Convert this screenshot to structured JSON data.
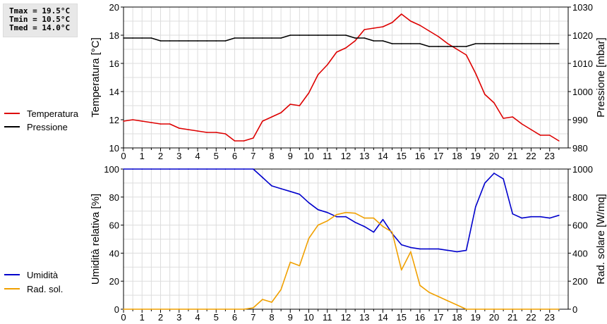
{
  "stats": {
    "tmax": "Tmax = 19.5°C",
    "tmin": "Tmin = 10.5°C",
    "tmed": "Tmed = 14.0°C"
  },
  "chart_data": [
    {
      "type": "line",
      "x_ticks": [
        "0",
        "1",
        "2",
        "3",
        "4",
        "5",
        "6",
        "7",
        "8",
        "9",
        "10",
        "11",
        "12",
        "13",
        "14",
        "15",
        "16",
        "17",
        "18",
        "19",
        "20",
        "21",
        "22",
        "23"
      ],
      "xlim": [
        0,
        24
      ],
      "ylabel": "Temperatura [°C]",
      "ylim": [
        10,
        20
      ],
      "y_ticks": [
        "10",
        "12",
        "14",
        "16",
        "18",
        "20"
      ],
      "ylabel_right": "Pressione [mbar]",
      "ylim_right": [
        980,
        1030
      ],
      "y_ticks_right": [
        "980",
        "990",
        "1000",
        "1010",
        "1020",
        "1030"
      ],
      "grid": true,
      "series": [
        {
          "name": "Temperatura",
          "axis": "left",
          "color": "#dd0000",
          "x": [
            0,
            0.5,
            1,
            1.5,
            2,
            2.5,
            3,
            3.5,
            4,
            4.5,
            5,
            5.5,
            6,
            6.5,
            7,
            7.5,
            8,
            8.5,
            9,
            9.5,
            10,
            10.5,
            11,
            11.5,
            12,
            12.5,
            13,
            13.5,
            14,
            14.5,
            15,
            15.5,
            16,
            16.5,
            17,
            17.5,
            18,
            18.5,
            19,
            19.5,
            20,
            20.5,
            21,
            21.5,
            22,
            22.5,
            23,
            23.5
          ],
          "values": [
            11.9,
            12.0,
            11.9,
            11.8,
            11.7,
            11.7,
            11.4,
            11.3,
            11.2,
            11.1,
            11.1,
            11.0,
            10.5,
            10.5,
            10.7,
            11.9,
            12.2,
            12.5,
            13.1,
            13.0,
            13.9,
            15.2,
            15.9,
            16.8,
            17.1,
            17.6,
            18.4,
            18.5,
            18.6,
            18.9,
            19.5,
            19.0,
            18.7,
            18.3,
            17.9,
            17.4,
            17.0,
            16.6,
            15.3,
            13.8,
            13.2,
            12.1,
            12.2,
            11.7,
            11.3,
            10.9,
            10.9,
            10.5
          ]
        },
        {
          "name": "Pressione",
          "axis": "right",
          "color": "#000000",
          "x": [
            0,
            0.5,
            1,
            1.5,
            2,
            2.5,
            3,
            3.5,
            4,
            4.5,
            5,
            5.5,
            6,
            6.5,
            7,
            7.5,
            8,
            8.5,
            9,
            9.5,
            10,
            10.5,
            11,
            11.5,
            12,
            12.5,
            13,
            13.5,
            14,
            14.5,
            15,
            15.5,
            16,
            16.5,
            17,
            17.5,
            18,
            18.5,
            19,
            19.5,
            20,
            20.5,
            21,
            21.5,
            22,
            22.5,
            23,
            23.5
          ],
          "values": [
            1019,
            1019,
            1019,
            1019,
            1018,
            1018,
            1018,
            1018,
            1018,
            1018,
            1018,
            1018,
            1019,
            1019,
            1019,
            1019,
            1019,
            1019,
            1020,
            1020,
            1020,
            1020,
            1020,
            1020,
            1020,
            1019,
            1019,
            1018,
            1018,
            1017,
            1017,
            1017,
            1017,
            1016,
            1016,
            1016,
            1016,
            1016,
            1017,
            1017,
            1017,
            1017,
            1017,
            1017,
            1017,
            1017,
            1017,
            1017
          ]
        }
      ]
    },
    {
      "type": "line",
      "x_ticks": [
        "0",
        "1",
        "2",
        "3",
        "4",
        "5",
        "6",
        "7",
        "8",
        "9",
        "10",
        "11",
        "12",
        "13",
        "14",
        "15",
        "16",
        "17",
        "18",
        "19",
        "20",
        "21",
        "22",
        "23"
      ],
      "xlim": [
        0,
        24
      ],
      "ylabel": "Umidità relativa [%]",
      "ylim": [
        0,
        100
      ],
      "y_ticks": [
        "0",
        "20",
        "40",
        "60",
        "80",
        "100"
      ],
      "ylabel_right": "Rad. solare [W/mq]",
      "ylim_right": [
        0,
        1000
      ],
      "y_ticks_right": [
        "0",
        "200",
        "400",
        "600",
        "800",
        "1000"
      ],
      "grid": true,
      "series": [
        {
          "name": "Umidità",
          "axis": "left",
          "color": "#0000cc",
          "x": [
            0,
            0.5,
            1,
            1.5,
            2,
            2.5,
            3,
            3.5,
            4,
            4.5,
            5,
            5.5,
            6,
            6.5,
            7,
            7.5,
            8,
            8.5,
            9,
            9.5,
            10,
            10.5,
            11,
            11.5,
            12,
            12.5,
            13,
            13.5,
            14,
            14.5,
            15,
            15.5,
            16,
            16.5,
            17,
            17.5,
            18,
            18.5,
            19,
            19.5,
            20,
            20.5,
            21,
            21.5,
            22,
            22.5,
            23,
            23.5
          ],
          "values": [
            100,
            100,
            100,
            100,
            100,
            100,
            100,
            100,
            100,
            100,
            100,
            100,
            100,
            100,
            100,
            94,
            88,
            86,
            84,
            82,
            76,
            71,
            69,
            66,
            66,
            62,
            59,
            55,
            64,
            54,
            46,
            44,
            43,
            43,
            43,
            42,
            41,
            42,
            73,
            90,
            97,
            93,
            68,
            65,
            66,
            66,
            65,
            67
          ]
        },
        {
          "name": "Rad. sol.",
          "axis": "right",
          "color": "#f0a000",
          "x": [
            0,
            0.5,
            1,
            1.5,
            2,
            2.5,
            3,
            3.5,
            4,
            4.5,
            5,
            5.5,
            6,
            6.5,
            7,
            7.5,
            8,
            8.5,
            9,
            9.5,
            10,
            10.5,
            11,
            11.5,
            12,
            12.5,
            13,
            13.5,
            14,
            14.5,
            15,
            15.5,
            16,
            16.5,
            17,
            17.5,
            18,
            18.5,
            19,
            19.5,
            20,
            20.5,
            21,
            21.5,
            22,
            22.5,
            23,
            23.5
          ],
          "values": [
            0,
            0,
            0,
            0,
            0,
            0,
            0,
            0,
            0,
            0,
            0,
            0,
            0,
            0,
            10,
            70,
            50,
            140,
            335,
            310,
            505,
            600,
            630,
            675,
            690,
            685,
            650,
            650,
            590,
            550,
            280,
            410,
            170,
            120,
            90,
            60,
            30,
            0,
            0,
            0,
            0,
            0,
            0,
            0,
            0,
            0,
            0,
            0
          ]
        }
      ]
    }
  ]
}
